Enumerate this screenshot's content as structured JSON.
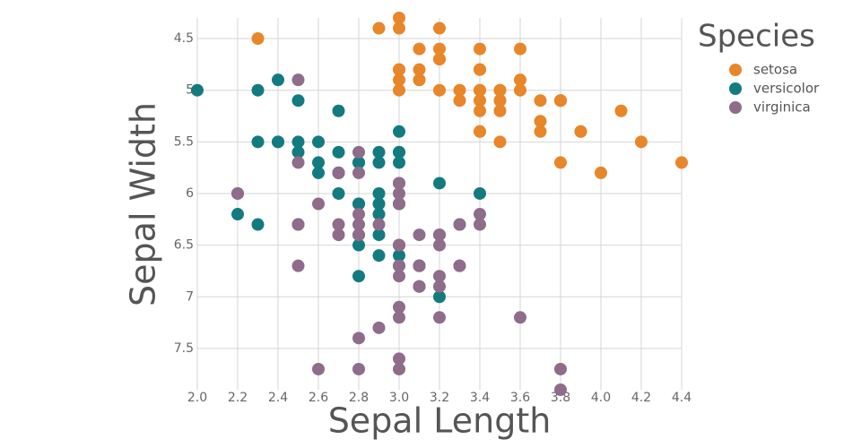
{
  "chart_data": {
    "type": "scatter",
    "x_label": "Sepal Length",
    "y_label": "Sepal Width",
    "legend_title": "Species",
    "xlim": [
      2.0,
      4.4
    ],
    "xticks": [
      {
        "value": 2.0,
        "label": "2.0"
      },
      2.2,
      2.4,
      2.6,
      2.8,
      {
        "value": 3.0,
        "label": "3.0"
      },
      3.2,
      3.4,
      3.6,
      3.8,
      {
        "value": 4.0,
        "label": "4.0"
      },
      4.2,
      4.4
    ],
    "ylim": [
      4.3,
      7.9
    ],
    "y_reversed": true,
    "yticks": [
      4.5,
      5,
      5.5,
      6,
      6.5,
      7,
      7.5
    ],
    "grid": true,
    "legend": "top-right",
    "series": [
      {
        "name": "setosa",
        "color": "#e8862a",
        "x": [
          3.5,
          3.0,
          3.2,
          3.1,
          3.6,
          3.9,
          3.4,
          3.4,
          2.9,
          3.1,
          3.7,
          3.4,
          3.0,
          3.0,
          4.0,
          4.4,
          3.9,
          3.5,
          3.8,
          3.8,
          3.4,
          3.7,
          3.6,
          3.3,
          3.4,
          3.0,
          3.4,
          3.5,
          3.4,
          3.2,
          3.1,
          3.4,
          4.1,
          4.2,
          3.1,
          3.2,
          3.5,
          3.6,
          3.0,
          3.4,
          3.5,
          2.3,
          3.2,
          3.5,
          3.8,
          3.0,
          3.8,
          3.2,
          3.7,
          3.3
        ],
        "values": [
          5.1,
          4.9,
          4.7,
          4.6,
          5.0,
          5.4,
          4.6,
          5.0,
          4.4,
          4.9,
          5.4,
          4.8,
          4.8,
          4.3,
          5.8,
          5.7,
          5.4,
          5.1,
          5.7,
          5.1,
          5.4,
          5.1,
          4.6,
          5.1,
          4.8,
          5.0,
          5.0,
          5.2,
          5.2,
          4.7,
          4.8,
          5.4,
          5.2,
          5.5,
          4.9,
          5.0,
          5.5,
          4.9,
          4.4,
          5.1,
          5.0,
          4.5,
          4.4,
          5.0,
          5.1,
          4.8,
          5.1,
          4.6,
          5.3,
          5.0
        ]
      },
      {
        "name": "versicolor",
        "color": "#137b80",
        "x": [
          3.2,
          3.2,
          3.1,
          2.3,
          2.8,
          2.8,
          3.3,
          2.4,
          2.9,
          2.7,
          2.0,
          3.0,
          2.2,
          2.9,
          2.9,
          3.1,
          3.0,
          2.7,
          2.2,
          2.5,
          3.2,
          2.8,
          2.5,
          2.8,
          2.9,
          3.0,
          2.8,
          3.0,
          2.9,
          2.6,
          2.4,
          2.4,
          2.7,
          2.7,
          3.0,
          3.4,
          3.1,
          2.3,
          3.0,
          2.5,
          2.6,
          3.0,
          2.6,
          2.3,
          2.7,
          3.0,
          2.9,
          2.9,
          2.5,
          2.8
        ],
        "values": [
          7.0,
          6.4,
          6.9,
          5.5,
          6.5,
          5.7,
          6.3,
          4.9,
          6.6,
          5.2,
          5.0,
          5.9,
          6.0,
          6.1,
          5.6,
          6.7,
          5.6,
          5.8,
          6.2,
          5.6,
          5.9,
          6.1,
          6.3,
          6.1,
          6.4,
          6.6,
          6.8,
          6.7,
          6.0,
          5.7,
          5.5,
          5.5,
          5.8,
          6.0,
          5.4,
          6.0,
          6.7,
          6.3,
          5.6,
          5.5,
          5.5,
          6.1,
          5.8,
          5.0,
          5.6,
          5.7,
          5.7,
          6.2,
          5.1,
          5.7
        ]
      },
      {
        "name": "virginica",
        "color": "#8e6c8a",
        "x": [
          3.3,
          2.7,
          3.0,
          2.9,
          3.0,
          3.0,
          2.5,
          2.9,
          2.5,
          3.6,
          3.2,
          2.7,
          3.0,
          2.5,
          2.8,
          3.2,
          3.0,
          3.8,
          2.6,
          2.2,
          3.2,
          2.8,
          2.8,
          2.7,
          3.3,
          3.2,
          2.8,
          3.0,
          2.8,
          3.0,
          2.8,
          3.8,
          2.8,
          2.8,
          2.6,
          3.0,
          3.4,
          3.1,
          3.0,
          3.1,
          3.1,
          3.1,
          2.7,
          3.2,
          3.3,
          3.0,
          2.5,
          3.0,
          3.4,
          3.0
        ],
        "values": [
          6.3,
          5.8,
          7.1,
          6.3,
          6.5,
          7.6,
          4.9,
          7.3,
          6.7,
          7.2,
          6.5,
          6.4,
          6.8,
          5.7,
          5.8,
          6.4,
          6.5,
          7.7,
          7.7,
          6.0,
          6.9,
          5.6,
          7.7,
          6.3,
          6.7,
          7.2,
          6.2,
          6.1,
          6.4,
          7.2,
          7.4,
          7.9,
          6.4,
          6.3,
          6.1,
          7.7,
          6.3,
          6.4,
          6.0,
          6.9,
          6.7,
          6.9,
          5.8,
          6.8,
          6.7,
          6.7,
          6.3,
          6.5,
          6.2,
          5.9
        ]
      }
    ]
  }
}
